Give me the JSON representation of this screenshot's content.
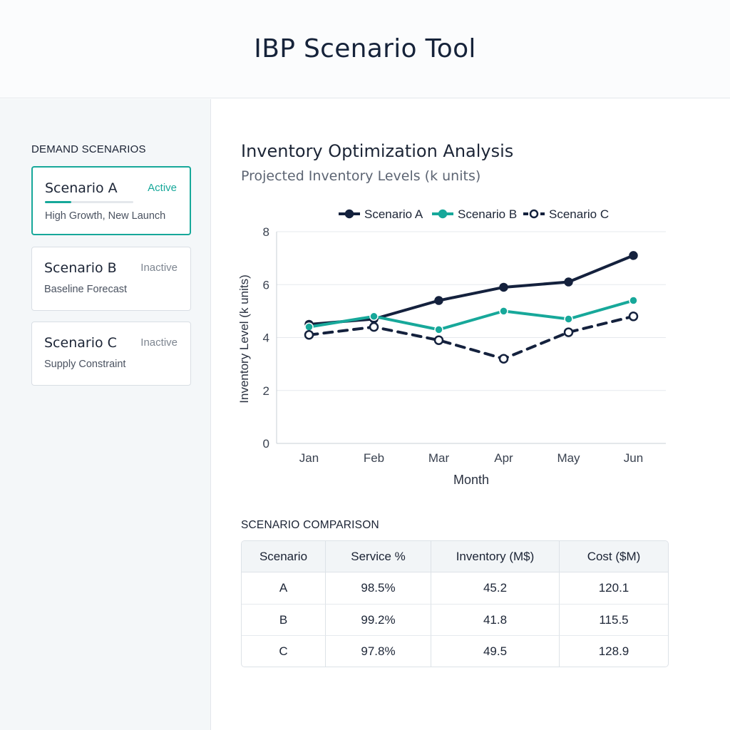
{
  "header": {
    "title": "IBP Scenario Tool"
  },
  "sidebar": {
    "title": "DEMAND SCENARIOS",
    "cards": [
      {
        "name": "Scenario A",
        "status": "Active",
        "description": "High Growth, New Launch",
        "active": true,
        "progress": 0.3
      },
      {
        "name": "Scenario B",
        "status": "Inactive",
        "description": "Baseline Forecast",
        "active": false
      },
      {
        "name": "Scenario C",
        "status": "Inactive",
        "description": "Supply Constraint",
        "active": false
      }
    ]
  },
  "main": {
    "chart_title": "Inventory Optimization Analysis",
    "chart_subtitle": "Projected Inventory Levels (k units)",
    "table_title": "SCENARIO COMPARISON",
    "table": {
      "headers": [
        "Scenario",
        "Service %",
        "Inventory (M$)",
        "Cost ($M)"
      ],
      "rows": [
        [
          "A",
          "98.5%",
          "45.2",
          "120.1"
        ],
        [
          "B",
          "99.2%",
          "41.8",
          "115.5"
        ],
        [
          "C",
          "97.8%",
          "49.5",
          "128.9"
        ]
      ]
    }
  },
  "chart_data": {
    "type": "line",
    "x": [
      "Jan",
      "Feb",
      "Mar",
      "Apr",
      "May",
      "Jun"
    ],
    "xlabel": "Month",
    "ylabel": "Inventory Level (k units)",
    "ylim": [
      0,
      8
    ],
    "yticks": [
      0,
      2,
      4,
      6,
      8
    ],
    "grid": true,
    "legend_position": "top",
    "series": [
      {
        "name": "Scenario A",
        "values": [
          4.5,
          4.7,
          5.4,
          5.9,
          6.1,
          7.1
        ],
        "color": "#14213d",
        "style": "solid",
        "marker": "filled"
      },
      {
        "name": "Scenario B",
        "values": [
          4.4,
          4.8,
          4.3,
          5.0,
          4.7,
          5.4
        ],
        "color": "#17a89a",
        "style": "solid",
        "marker": "filled"
      },
      {
        "name": "Scenario C",
        "values": [
          4.1,
          4.4,
          3.9,
          3.2,
          4.2,
          4.8
        ],
        "color": "#14213d",
        "style": "dashed",
        "marker": "hollow"
      }
    ]
  }
}
